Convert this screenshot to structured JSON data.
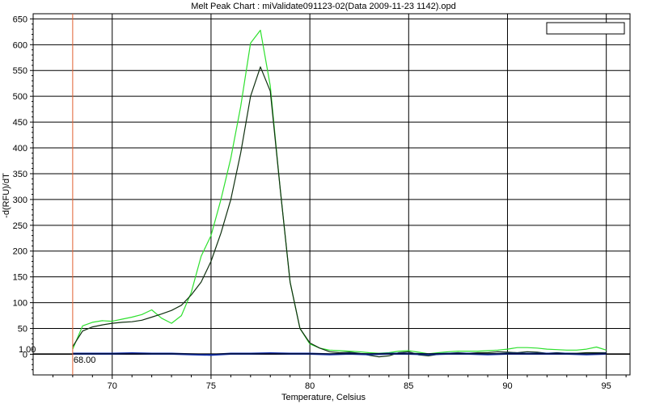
{
  "chart_data": {
    "type": "line",
    "title": "Melt Peak Chart : miValidate091123-02(Data 2009-11-23 1142).opd",
    "xlabel": "Temperature, Celsius",
    "ylabel": "-d(RFU)/dT",
    "xlim": [
      66,
      96.2
    ],
    "ylim": [
      -40,
      660
    ],
    "x_ticks": [
      70,
      75,
      80,
      85,
      90,
      95
    ],
    "y_ticks": [
      0,
      50,
      100,
      150,
      200,
      250,
      300,
      350,
      400,
      450,
      500,
      550,
      600,
      650
    ],
    "grid": true,
    "legend": "top-right (empty box)",
    "threshold": {
      "value": "1.00",
      "color": "#000000"
    },
    "cursor": {
      "x": 68.0,
      "label": "68.00",
      "color": "#e06030"
    },
    "series": [
      {
        "color": "#2ee02e",
        "x": [
          68,
          68.5,
          69,
          69.5,
          70,
          70.5,
          71,
          71.5,
          72,
          72.5,
          73,
          73.5,
          74,
          74.5,
          75,
          75.5,
          76,
          76.5,
          77,
          77.5,
          78,
          78.5,
          79,
          79.5,
          80,
          80.5,
          81,
          81.5,
          82,
          82.5,
          83,
          83.5,
          84,
          84.5,
          85,
          85.5,
          86,
          86.5,
          87,
          87.5,
          88,
          88.5,
          89,
          89.5,
          90,
          90.5,
          91,
          91.5,
          92,
          92.5,
          93,
          93.5,
          94,
          94.5,
          95
        ],
        "values": [
          10,
          55,
          62,
          65,
          64,
          68,
          72,
          77,
          86,
          70,
          60,
          75,
          120,
          190,
          230,
          300,
          380,
          480,
          603,
          628,
          520,
          320,
          140,
          50,
          20,
          12,
          8,
          7,
          6,
          5,
          3,
          2,
          3,
          6,
          7,
          4,
          1,
          3,
          5,
          6,
          6,
          6,
          7,
          8,
          10,
          13,
          13,
          12,
          10,
          9,
          8,
          8,
          10,
          14,
          8
        ]
      },
      {
        "color": "#103010",
        "x": [
          68,
          68.5,
          69,
          69.5,
          70,
          70.5,
          71,
          71.5,
          72,
          72.5,
          73,
          73.5,
          74,
          74.5,
          75,
          75.5,
          76,
          76.5,
          77,
          77.5,
          78,
          78.5,
          79,
          79.5,
          80,
          80.5,
          81,
          81.5,
          82,
          82.5,
          83,
          83.5,
          84,
          84.5,
          85,
          85.5,
          86,
          86.5,
          87,
          87.5,
          88,
          88.5,
          89,
          89.5,
          90,
          90.5,
          91,
          91.5,
          92,
          92.5,
          93,
          93.5,
          94,
          94.5,
          95
        ],
        "values": [
          15,
          45,
          53,
          57,
          60,
          62,
          63,
          66,
          72,
          78,
          85,
          95,
          115,
          140,
          180,
          235,
          300,
          390,
          500,
          557,
          510,
          320,
          140,
          50,
          22,
          12,
          5,
          3,
          4,
          2,
          -2,
          -5,
          -3,
          3,
          5,
          -1,
          -3,
          0,
          2,
          3,
          2,
          3,
          3,
          5,
          4,
          3,
          5,
          4,
          2,
          3,
          2,
          2,
          3,
          3,
          3
        ]
      },
      {
        "color": "#1030b0",
        "x": [
          68,
          69,
          70,
          71,
          72,
          73,
          74,
          75,
          76,
          77,
          78,
          79,
          80,
          81,
          82,
          83,
          84,
          85,
          86,
          87,
          88,
          89,
          90,
          91,
          92,
          93,
          94,
          95
        ],
        "values": [
          1,
          1,
          1,
          2,
          1,
          1,
          0,
          -1,
          1,
          1,
          2,
          1,
          1,
          0,
          1,
          0,
          1,
          1,
          0,
          1,
          1,
          0,
          1,
          1,
          1,
          1,
          0,
          1
        ]
      }
    ]
  }
}
